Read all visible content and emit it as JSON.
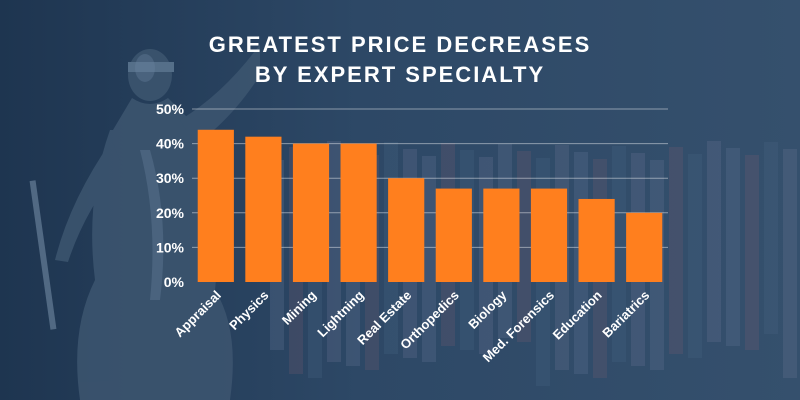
{
  "chart_data": {
    "type": "bar",
    "title_lines": [
      "GREATEST PRICE DECREASES",
      "BY EXPERT SPECIALTY"
    ],
    "categories": [
      "Appraisal",
      "Physics",
      "Mining",
      "Lightning",
      "Real Estate",
      "Orthopedics",
      "Biology",
      "Med. Forensics",
      "Education",
      "Bariatrics"
    ],
    "values": [
      44,
      42,
      40,
      40,
      30,
      27,
      27,
      27,
      24,
      20
    ],
    "ylim": [
      0,
      50
    ],
    "yticks": [
      0,
      10,
      20,
      30,
      40,
      50
    ],
    "ytick_labels": [
      "0%",
      "10%",
      "20%",
      "30%",
      "40%",
      "50%"
    ],
    "grid": true,
    "bar_color": "#ff7f1e",
    "background_color": "#2b4563"
  }
}
